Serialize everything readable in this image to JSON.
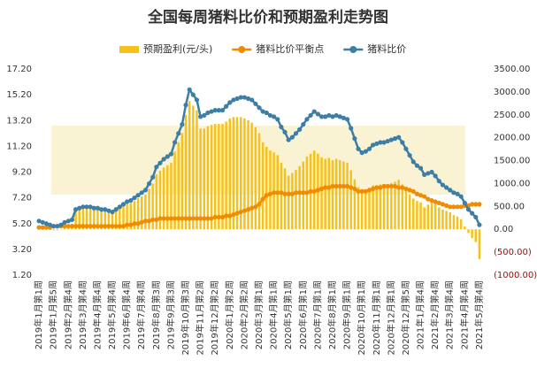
{
  "chart_data": {
    "type": "bar-line",
    "title": "全国每周猪料比价和预期盈利走势图",
    "categories": [
      "2019年1月第1周",
      null,
      null,
      null,
      "2019年1月第5周",
      null,
      null,
      null,
      "2019年2月第4周",
      null,
      null,
      null,
      "2019年3月第4周",
      null,
      null,
      null,
      "2019年4月第4周",
      null,
      null,
      null,
      "2019年5月第4周",
      null,
      null,
      null,
      "2019年6月第4周",
      null,
      null,
      null,
      "2019年7月第4周",
      null,
      null,
      null,
      "2019年8月第3周",
      null,
      null,
      null,
      "2019年9月第3周",
      null,
      null,
      null,
      "2019年10月第3周",
      null,
      null,
      null,
      "2019年11月第2周",
      null,
      null,
      null,
      "2019年12月第2周",
      null,
      null,
      null,
      "2020年1月第2周",
      null,
      null,
      null,
      "2020年2月第2周",
      null,
      null,
      null,
      "2020年3月第1周",
      null,
      null,
      null,
      "2020年4月第1周",
      null,
      null,
      null,
      "2020年5月第1周",
      null,
      null,
      null,
      "2020年6月第1周",
      null,
      null,
      null,
      "2020年7月第1周",
      null,
      null,
      null,
      "2020年8月第1周",
      null,
      null,
      null,
      "2020年9月第1周",
      null,
      null,
      null,
      "2020年10月第1周",
      null,
      null,
      null,
      "2020年11月第1周",
      null,
      null,
      null,
      "2020年12月第1周",
      null,
      null,
      null,
      "2020年12月第5周",
      null,
      null,
      null,
      "2021年1月第4周",
      null,
      null,
      null,
      "2021年2月第4周",
      null,
      null,
      null,
      "2021年3月第4周",
      null,
      null,
      null,
      "2021年4月第4周",
      null,
      null,
      null,
      "2021年5月第4周"
    ],
    "series": [
      {
        "name": "预期盈利(元/头)",
        "type": "bar",
        "axis": "y2",
        "color": "#f5c21b",
        "values": [
          20,
          10,
          0,
          -10,
          -20,
          -20,
          10,
          50,
          80,
          120,
          400,
          430,
          450,
          450,
          450,
          420,
          420,
          400,
          400,
          380,
          350,
          400,
          450,
          500,
          550,
          580,
          620,
          680,
          720,
          760,
          880,
          1000,
          1200,
          1280,
          1350,
          1400,
          1450,
          1700,
          1900,
          2100,
          2500,
          2800,
          2700,
          2600,
          2200,
          2200,
          2250,
          2280,
          2300,
          2300,
          2300,
          2350,
          2420,
          2450,
          2450,
          2450,
          2420,
          2380,
          2330,
          2230,
          2100,
          1900,
          1800,
          1720,
          1680,
          1620,
          1450,
          1330,
          1170,
          1230,
          1300,
          1380,
          1480,
          1590,
          1650,
          1720,
          1650,
          1570,
          1540,
          1560,
          1510,
          1540,
          1510,
          1480,
          1450,
          1290,
          1090,
          920,
          840,
          870,
          900,
          960,
          950,
          980,
          960,
          990,
          1010,
          1040,
          1080,
          980,
          870,
          760,
          670,
          620,
          590,
          480,
          540,
          600,
          560,
          480,
          430,
          400,
          370,
          310,
          280,
          220,
          60,
          -80,
          -190,
          -280,
          -650
        ]
      },
      {
        "name": "猪料比价平衡点",
        "type": "line",
        "color": "#f08c00",
        "values": [
          4.9,
          4.9,
          4.9,
          4.9,
          5.0,
          5.0,
          5.0,
          5.0,
          5.0,
          5.0,
          5.0,
          5.0,
          5.0,
          5.0,
          5.0,
          5.0,
          5.0,
          5.0,
          5.0,
          5.0,
          5.0,
          5.0,
          5.0,
          5.0,
          5.1,
          5.1,
          5.2,
          5.2,
          5.3,
          5.4,
          5.4,
          5.5,
          5.5,
          5.6,
          5.6,
          5.6,
          5.6,
          5.6,
          5.6,
          5.6,
          5.6,
          5.6,
          5.6,
          5.6,
          5.6,
          5.6,
          5.6,
          5.6,
          5.7,
          5.7,
          5.7,
          5.8,
          5.8,
          5.9,
          6.0,
          6.1,
          6.2,
          6.3,
          6.4,
          6.5,
          6.7,
          7.1,
          7.4,
          7.5,
          7.6,
          7.6,
          7.6,
          7.5,
          7.5,
          7.5,
          7.6,
          7.6,
          7.6,
          7.6,
          7.7,
          7.7,
          7.8,
          7.9,
          8.0,
          8.0,
          8.1,
          8.1,
          8.1,
          8.1,
          8.1,
          8.0,
          7.9,
          7.7,
          7.7,
          7.7,
          7.8,
          7.9,
          8.0,
          8.0,
          8.1,
          8.1,
          8.1,
          8.1,
          8.0,
          8.0,
          7.9,
          7.8,
          7.7,
          7.5,
          7.4,
          7.3,
          7.1,
          7.0,
          6.9,
          6.8,
          6.7,
          6.6,
          6.5,
          6.5,
          6.5,
          6.5,
          6.6,
          6.6,
          6.7,
          6.7,
          6.7
        ]
      },
      {
        "name": "猪料比价",
        "type": "line",
        "color": "#3d7ea6",
        "values": [
          5.4,
          5.3,
          5.2,
          5.1,
          5.0,
          5.0,
          5.1,
          5.3,
          5.4,
          5.5,
          6.3,
          6.4,
          6.5,
          6.5,
          6.5,
          6.4,
          6.4,
          6.3,
          6.3,
          6.2,
          6.1,
          6.3,
          6.5,
          6.7,
          6.9,
          7.0,
          7.2,
          7.4,
          7.6,
          7.8,
          8.3,
          8.8,
          9.6,
          9.9,
          10.2,
          10.4,
          10.6,
          11.5,
          12.2,
          12.9,
          14.4,
          15.6,
          15.2,
          14.8,
          13.5,
          13.6,
          13.8,
          13.9,
          14.0,
          14.0,
          14.0,
          14.3,
          14.6,
          14.8,
          14.9,
          15.0,
          15.0,
          14.9,
          14.8,
          14.5,
          14.2,
          13.9,
          13.8,
          13.6,
          13.5,
          13.3,
          12.7,
          12.3,
          11.7,
          11.9,
          12.2,
          12.5,
          12.9,
          13.3,
          13.6,
          13.9,
          13.7,
          13.5,
          13.5,
          13.6,
          13.5,
          13.6,
          13.5,
          13.4,
          13.3,
          12.6,
          11.8,
          11.0,
          10.7,
          10.8,
          11.0,
          11.3,
          11.4,
          11.5,
          11.5,
          11.6,
          11.7,
          11.8,
          11.9,
          11.5,
          11.0,
          10.5,
          10.0,
          9.7,
          9.5,
          9.0,
          9.1,
          9.2,
          8.9,
          8.5,
          8.2,
          8.0,
          7.8,
          7.6,
          7.5,
          7.3,
          6.8,
          6.3,
          6.0,
          5.7,
          5.1
        ]
      }
    ],
    "ylim": [
      1.2,
      17.2
    ],
    "yticks": [
      {
        "value": 1.2,
        "label": "1.20"
      },
      {
        "value": 3.2,
        "label": "3.20"
      },
      {
        "value": 5.2,
        "label": "5.20"
      },
      {
        "value": 7.2,
        "label": "7.20"
      },
      {
        "value": 9.2,
        "label": "9.20"
      },
      {
        "value": 11.2,
        "label": "11.20"
      },
      {
        "value": 13.2,
        "label": "13.20"
      },
      {
        "value": 15.2,
        "label": "15.20"
      },
      {
        "value": 17.2,
        "label": "17.20"
      }
    ],
    "y2lim": [
      -1000,
      3500
    ],
    "y2ticks": [
      {
        "value": -1000,
        "label": "(1000.00)"
      },
      {
        "value": -500,
        "label": "(500.00)"
      },
      {
        "value": 0,
        "label": "0.00"
      },
      {
        "value": 500,
        "label": "500.00"
      },
      {
        "value": 1000,
        "label": "1000.00"
      },
      {
        "value": 1500,
        "label": "1500.00"
      },
      {
        "value": 2000,
        "label": "2000.00"
      },
      {
        "value": 2500,
        "label": "2500.00"
      },
      {
        "value": 3000,
        "label": "3000.00"
      },
      {
        "value": 3500,
        "label": "3500.00"
      }
    ],
    "y2_negative_label_color": "#c00000",
    "legend": "top",
    "grid": false
  }
}
